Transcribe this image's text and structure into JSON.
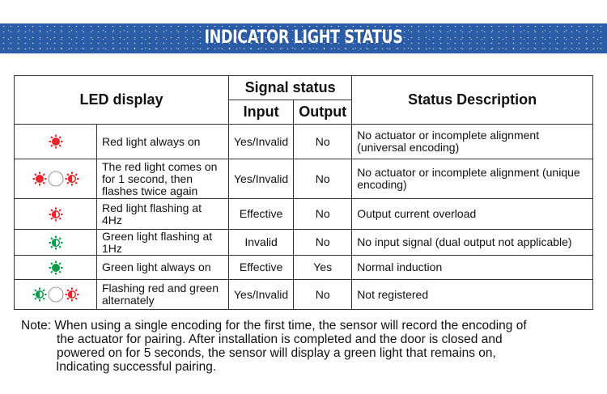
{
  "banner": {
    "title": "INDICATOR LIGHT STATUS"
  },
  "colors": {
    "banner": "#2a5ca8",
    "red": "#e8262c",
    "green": "#0a9a4a"
  },
  "table": {
    "headers": {
      "led": "LED display",
      "signal": "Signal status",
      "input": "Input",
      "output": "Output",
      "description": "Status Description"
    },
    "rows": [
      {
        "icons": [
          {
            "color": "red",
            "type": "solid"
          }
        ],
        "led": "Red light always on",
        "input": "Yes/Invalid",
        "output": "No",
        "description": "No actuator or incomplete alignment (universal encoding)"
      },
      {
        "icons": [
          {
            "color": "red",
            "type": "solid"
          },
          {
            "color": "red",
            "type": "half"
          }
        ],
        "led": "The red light comes on for 1 second, then flashes twice again",
        "input": "Yes/Invalid",
        "output": "No",
        "description": "No actuator or incomplete alignment (unique encoding)"
      },
      {
        "icons": [
          {
            "color": "red",
            "type": "half"
          }
        ],
        "led": "Red light flashing at 4Hz",
        "input": "Effective",
        "output": "No",
        "description": "Output current overload"
      },
      {
        "icons": [
          {
            "color": "green",
            "type": "half"
          }
        ],
        "led": "Green light flashing at 1Hz",
        "input": "Invalid",
        "output": "No",
        "description": "No input signal (dual output not applicable)"
      },
      {
        "icons": [
          {
            "color": "green",
            "type": "solid"
          }
        ],
        "led": "Green light always on",
        "input": "Effective",
        "output": "Yes",
        "description": "Normal induction"
      },
      {
        "icons": [
          {
            "color": "green",
            "type": "half"
          },
          {
            "color": "red",
            "type": "half"
          }
        ],
        "led": "Flashing red and green alternately",
        "input": "Yes/Invalid",
        "output": "No",
        "description": "Not registered"
      }
    ]
  },
  "note": {
    "lines": [
      "Note: When using a single encoding for the first time, the sensor will record the encoding of",
      "the actuator for pairing. After installation is completed and the door is closed and",
      "powered on for 5 seconds, the sensor will display a green light that remains on,",
      "Indicating successful pairing."
    ]
  }
}
